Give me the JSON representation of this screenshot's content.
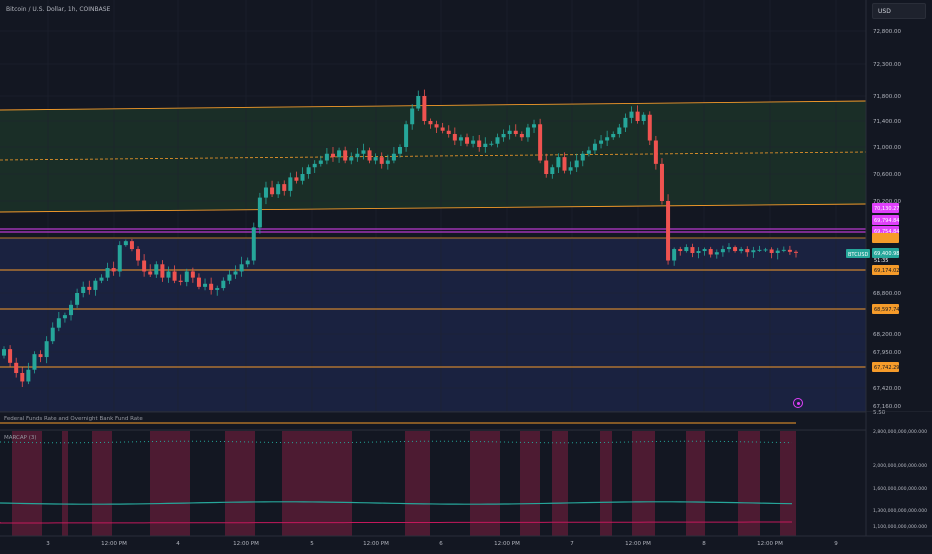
{
  "header": {
    "title": "Bitcoin / U.S. Dollar, 1h, COINBASE",
    "currency": "USD"
  },
  "price_axis": {
    "ticks": [
      "72,800.00",
      "72,300.00",
      "71,800.00",
      "71,400.00",
      "71,000.00",
      "70,600.00",
      "70,200.00",
      "68,800.00",
      "68,200.00",
      "67,950.00",
      "67,420.00",
      "67,160.00"
    ]
  },
  "price_labels": {
    "symbol_tag": "BTCUSD",
    "last_price": "69,400.98",
    "countdown": "51:35",
    "level_1": "69,174.02",
    "level_2": "68,597.74",
    "level_3": "67,742.29",
    "magenta_1": "70,130.27",
    "magenta_2": "69,794.84",
    "magenta_3": "69,754.84",
    "bottom_cut": "5.50"
  },
  "time_axis": {
    "ticks": [
      "3",
      "12:00 PM",
      "4",
      "12:00 PM",
      "5",
      "12:00 PM",
      "6",
      "12:00 PM",
      "7",
      "12:00 PM",
      "8",
      "12:00 PM",
      "9"
    ]
  },
  "indicators": {
    "fed_label": "Federal Funds Rate and Overnight Bank Fund Rate",
    "marcap_label": "MARCAP (3)",
    "marcap_ticks": [
      "2,800,000,000,000.000",
      "2,000,000,000,000.000",
      "1,600,000,000,000.000",
      "1,300,000,000,000.000",
      "1,100,000,000,000.000"
    ]
  },
  "chart_data": {
    "type": "candlestick",
    "title": "Bitcoin / U.S. Dollar, 1h, COINBASE",
    "ylim": [
      67160,
      72900
    ],
    "closes": [
      67990,
      67800,
      67650,
      67520,
      67700,
      67920,
      67880,
      68100,
      68300,
      68450,
      68500,
      68650,
      68800,
      68900,
      68850,
      69000,
      69050,
      69200,
      69150,
      69600,
      69700,
      69500,
      69300,
      69150,
      69100,
      69250,
      69050,
      69150,
      69000,
      68980,
      69150,
      69050,
      68900,
      68950,
      68850,
      68880,
      69000,
      69100,
      69150,
      69250,
      69300,
      69900,
      70250,
      70400,
      70300,
      70450,
      70350,
      70550,
      70500,
      70600,
      70700,
      70750,
      70800,
      70900,
      70850,
      70950,
      70800,
      70850,
      70900,
      70950,
      70800,
      70850,
      70750,
      70800,
      70900,
      71000,
      71350,
      71600,
      71800,
      71400,
      71350,
      71300,
      71250,
      71200,
      71100,
      71150,
      71050,
      71100,
      71000,
      71050,
      71050,
      71150,
      71200,
      71250,
      71200,
      71150,
      71300,
      71350,
      70800,
      70600,
      70700,
      70850,
      70650,
      70700,
      70800,
      70900,
      70950,
      71050,
      71100,
      71150,
      71200,
      71300,
      71450,
      71550,
      71400,
      71500,
      71100,
      70750,
      70200,
      69300,
      69500,
      69450,
      69550,
      69400,
      69450,
      69500,
      69380,
      69420,
      69500,
      69550,
      69450,
      69500,
      69420,
      69470,
      69480,
      69490,
      69400,
      69460,
      69480,
      69430,
      69410
    ]
  }
}
